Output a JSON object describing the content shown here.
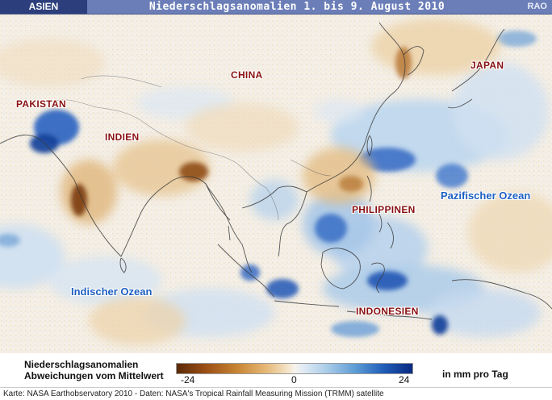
{
  "header": {
    "region": "ASIEN",
    "title": "Niederschlagsanomalien 1. bis 9. August 2010",
    "source_code": "RAO"
  },
  "map": {
    "country_labels": [
      "PAKISTAN",
      "INDIEN",
      "CHINA",
      "JAPAN",
      "PHILIPPINEN",
      "INDONESIEN"
    ],
    "ocean_labels": [
      "Indischer Ozean",
      "Pazifischer Ozean"
    ],
    "colors": {
      "dry_strong": "#5a2a08",
      "dry": "#c98635",
      "neutral": "#f7f3ec",
      "wet": "#5b9bd5",
      "wet_strong": "#0a2a80",
      "label_country": "#8a1010",
      "label_ocean": "#1d5fc2"
    }
  },
  "legend": {
    "title_line1": "Niederschlagsanomalien",
    "title_line2": "Abweichungen vom Mittelwert",
    "min": "-24",
    "mid": "0",
    "max": "24",
    "unit": "in mm pro Tag"
  },
  "footer": {
    "credits": "Karte: NASA Earthobservatory 2010 - Daten:  NASA's Tropical Rainfall Measuring Mission (TRMM) satellite"
  }
}
